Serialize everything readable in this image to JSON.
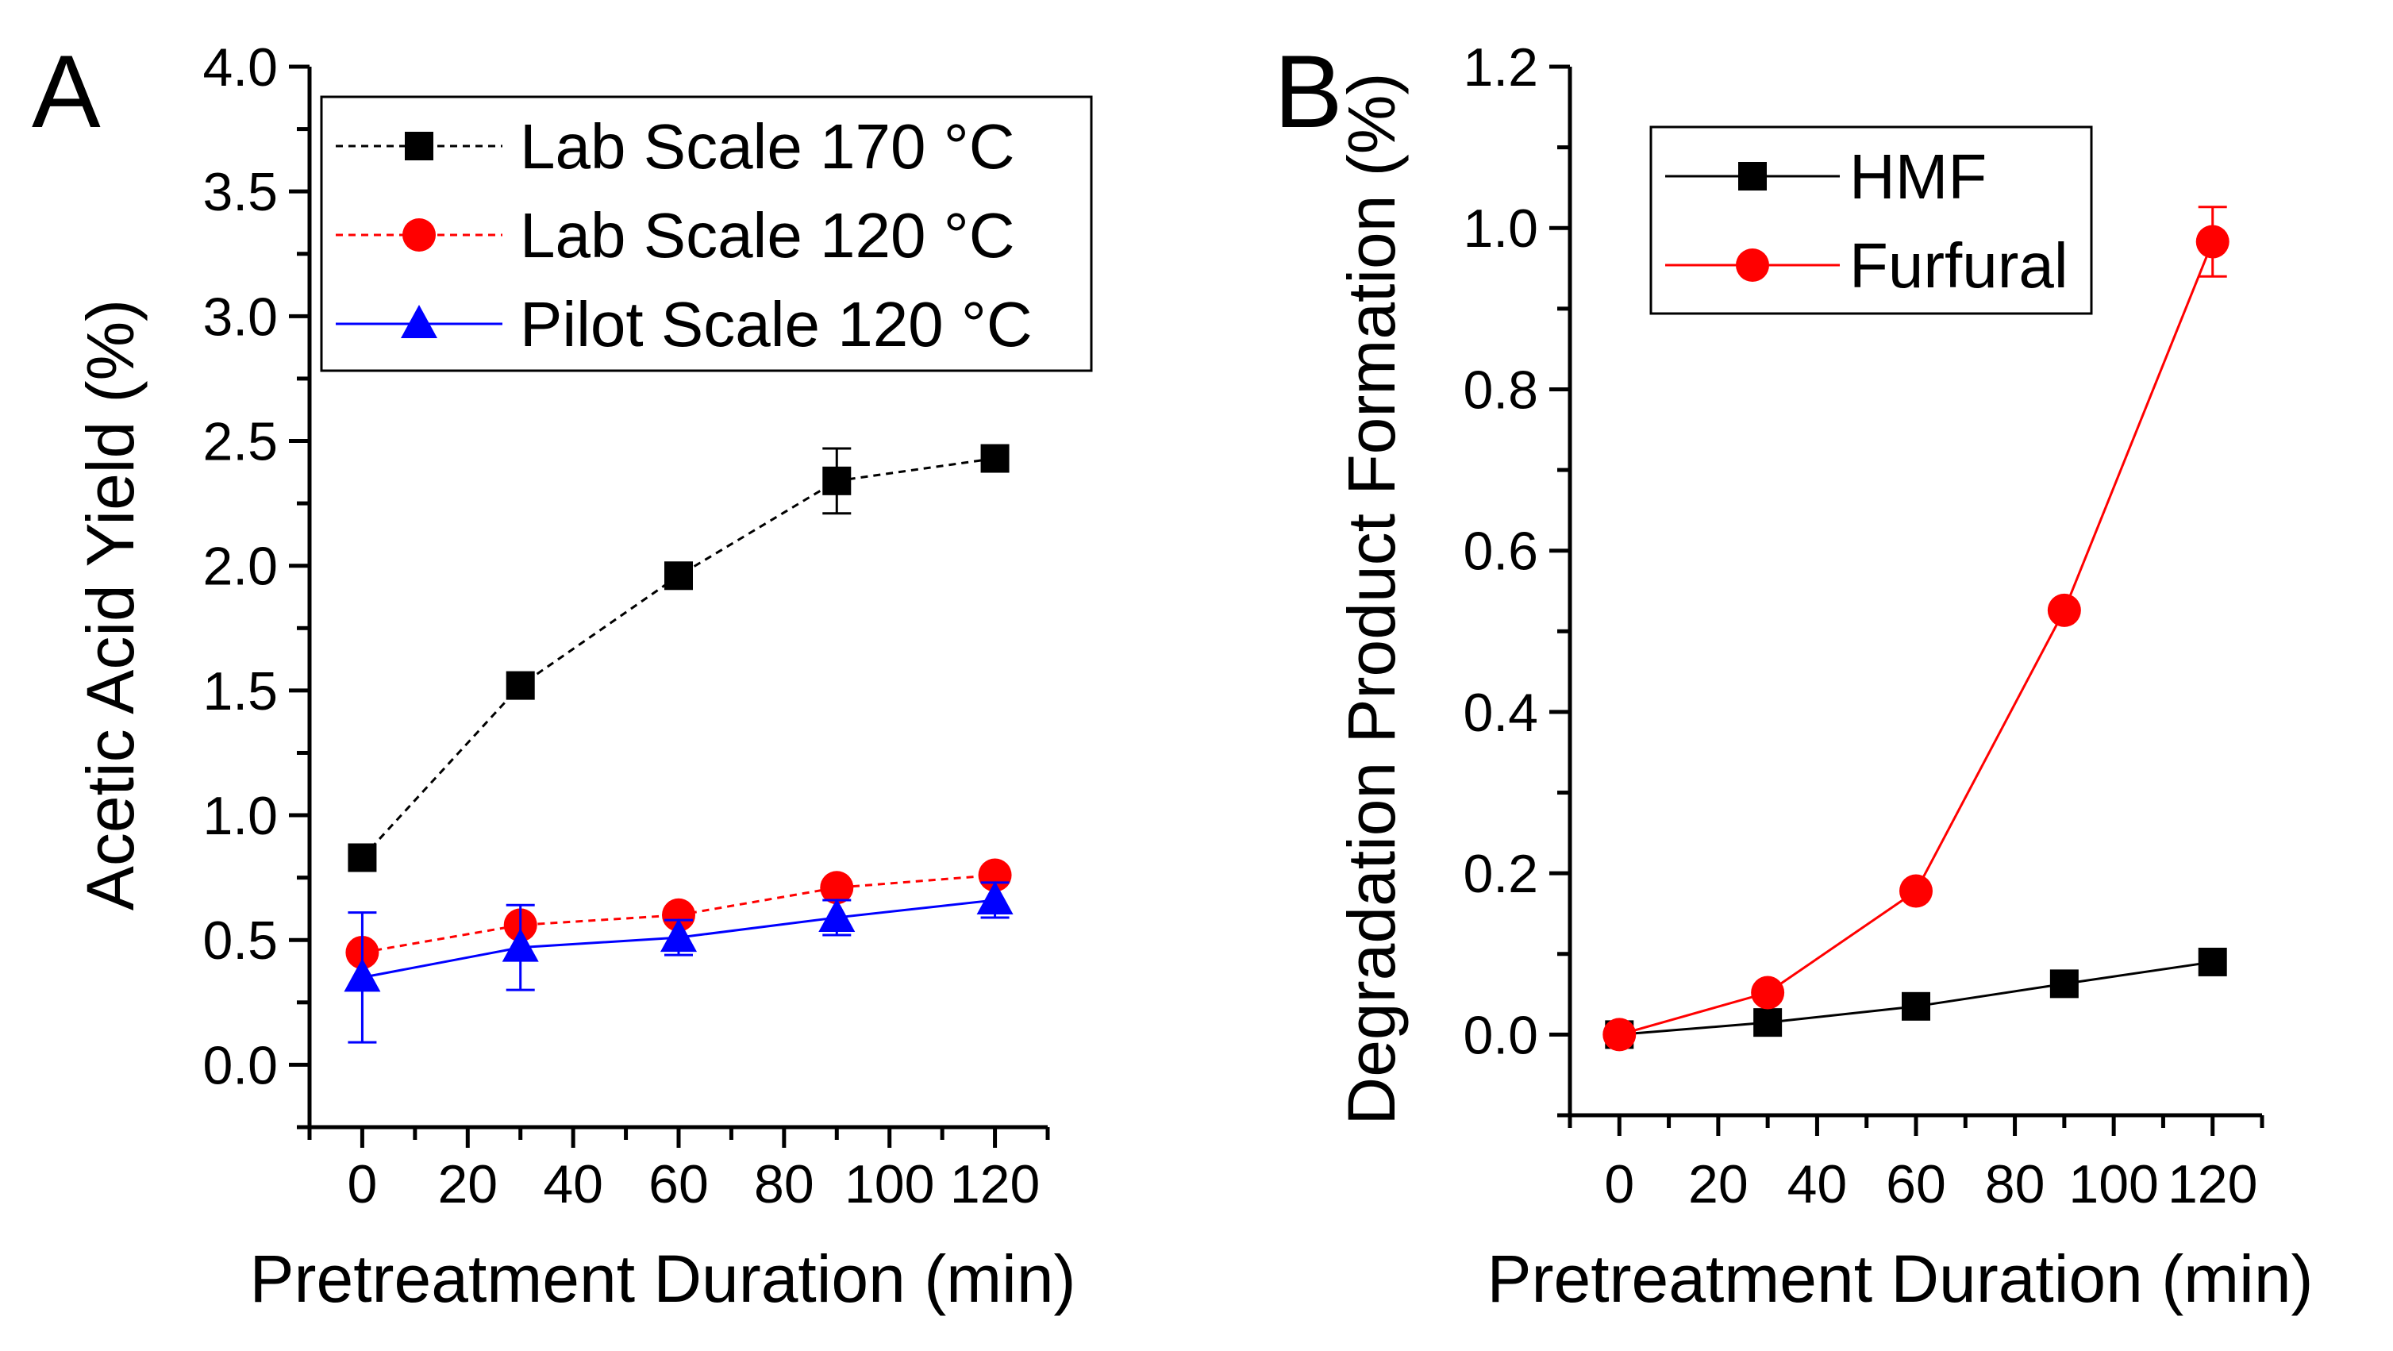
{
  "figure": {
    "panels": [
      "A",
      "B"
    ]
  },
  "chart_data": [
    {
      "panel_label": "A",
      "type": "line",
      "title": "",
      "xlabel": "Pretreatment Duration (min)",
      "ylabel": "Acetic Acid Yield (%)",
      "xlim": [
        -10,
        130
      ],
      "ylim": [
        -0.25,
        4.0
      ],
      "xticks": [
        0,
        20,
        40,
        60,
        80,
        100,
        120
      ],
      "xtick_labels": [
        "0",
        "20",
        "40",
        "60",
        "80",
        "100",
        "120"
      ],
      "yticks": [
        0.0,
        0.5,
        1.0,
        1.5,
        2.0,
        2.5,
        3.0,
        3.5,
        4.0
      ],
      "ytick_labels": [
        "0.0",
        "0.5",
        "1.0",
        "1.5",
        "2.0",
        "2.5",
        "3.0",
        "3.5",
        "4.0"
      ],
      "legend_position": "top-right",
      "series": [
        {
          "name": "Lab Scale 170 °C",
          "color": "#000000",
          "marker": "square",
          "line": "dashed",
          "x": [
            0,
            30,
            60,
            90,
            120
          ],
          "y": [
            0.83,
            1.52,
            1.96,
            2.34,
            2.43
          ],
          "yerr": [
            0,
            0,
            0,
            0.13,
            0
          ]
        },
        {
          "name": "Lab Scale 120 °C",
          "color": "#ff0000",
          "marker": "circle",
          "line": "dashed",
          "x": [
            0,
            30,
            60,
            90,
            120
          ],
          "y": [
            0.45,
            0.56,
            0.6,
            0.71,
            0.76
          ],
          "yerr": [
            0,
            0,
            0,
            0,
            0
          ]
        },
        {
          "name": "Pilot Scale 120 °C",
          "color": "#0000ff",
          "marker": "triangle",
          "line": "solid",
          "x": [
            0,
            30,
            60,
            90,
            120
          ],
          "y": [
            0.35,
            0.47,
            0.51,
            0.59,
            0.66
          ],
          "yerr": [
            0.26,
            0.17,
            0.07,
            0.07,
            0.07
          ]
        }
      ]
    },
    {
      "panel_label": "B",
      "type": "line",
      "title": "",
      "xlabel": "Pretreatment Duration (min)",
      "ylabel": "Degradation Product Formation (%)",
      "xlim": [
        -10,
        130
      ],
      "ylim": [
        -0.1,
        1.2
      ],
      "xticks": [
        0,
        20,
        40,
        60,
        80,
        100,
        120
      ],
      "xtick_labels": [
        "0",
        "20",
        "40",
        "60",
        "80",
        "100",
        "120"
      ],
      "yticks": [
        0.0,
        0.2,
        0.4,
        0.6,
        0.8,
        1.0,
        1.2
      ],
      "ytick_labels": [
        "0.0",
        "0.2",
        "0.4",
        "0.6",
        "0.8",
        "1.0",
        "1.2"
      ],
      "legend_position": "top-left",
      "series": [
        {
          "name": "HMF",
          "color": "#000000",
          "marker": "square",
          "line": "solid",
          "x": [
            0,
            30,
            60,
            90,
            120
          ],
          "y": [
            0.0,
            0.015,
            0.035,
            0.063,
            0.09
          ],
          "yerr": [
            0,
            0,
            0,
            0,
            0
          ]
        },
        {
          "name": "Furfural",
          "color": "#ff0000",
          "marker": "circle",
          "line": "solid",
          "x": [
            0,
            30,
            60,
            90,
            120
          ],
          "y": [
            0.0,
            0.052,
            0.178,
            0.526,
            0.983
          ],
          "yerr": [
            0,
            0,
            0,
            0,
            0.043
          ]
        }
      ]
    }
  ]
}
